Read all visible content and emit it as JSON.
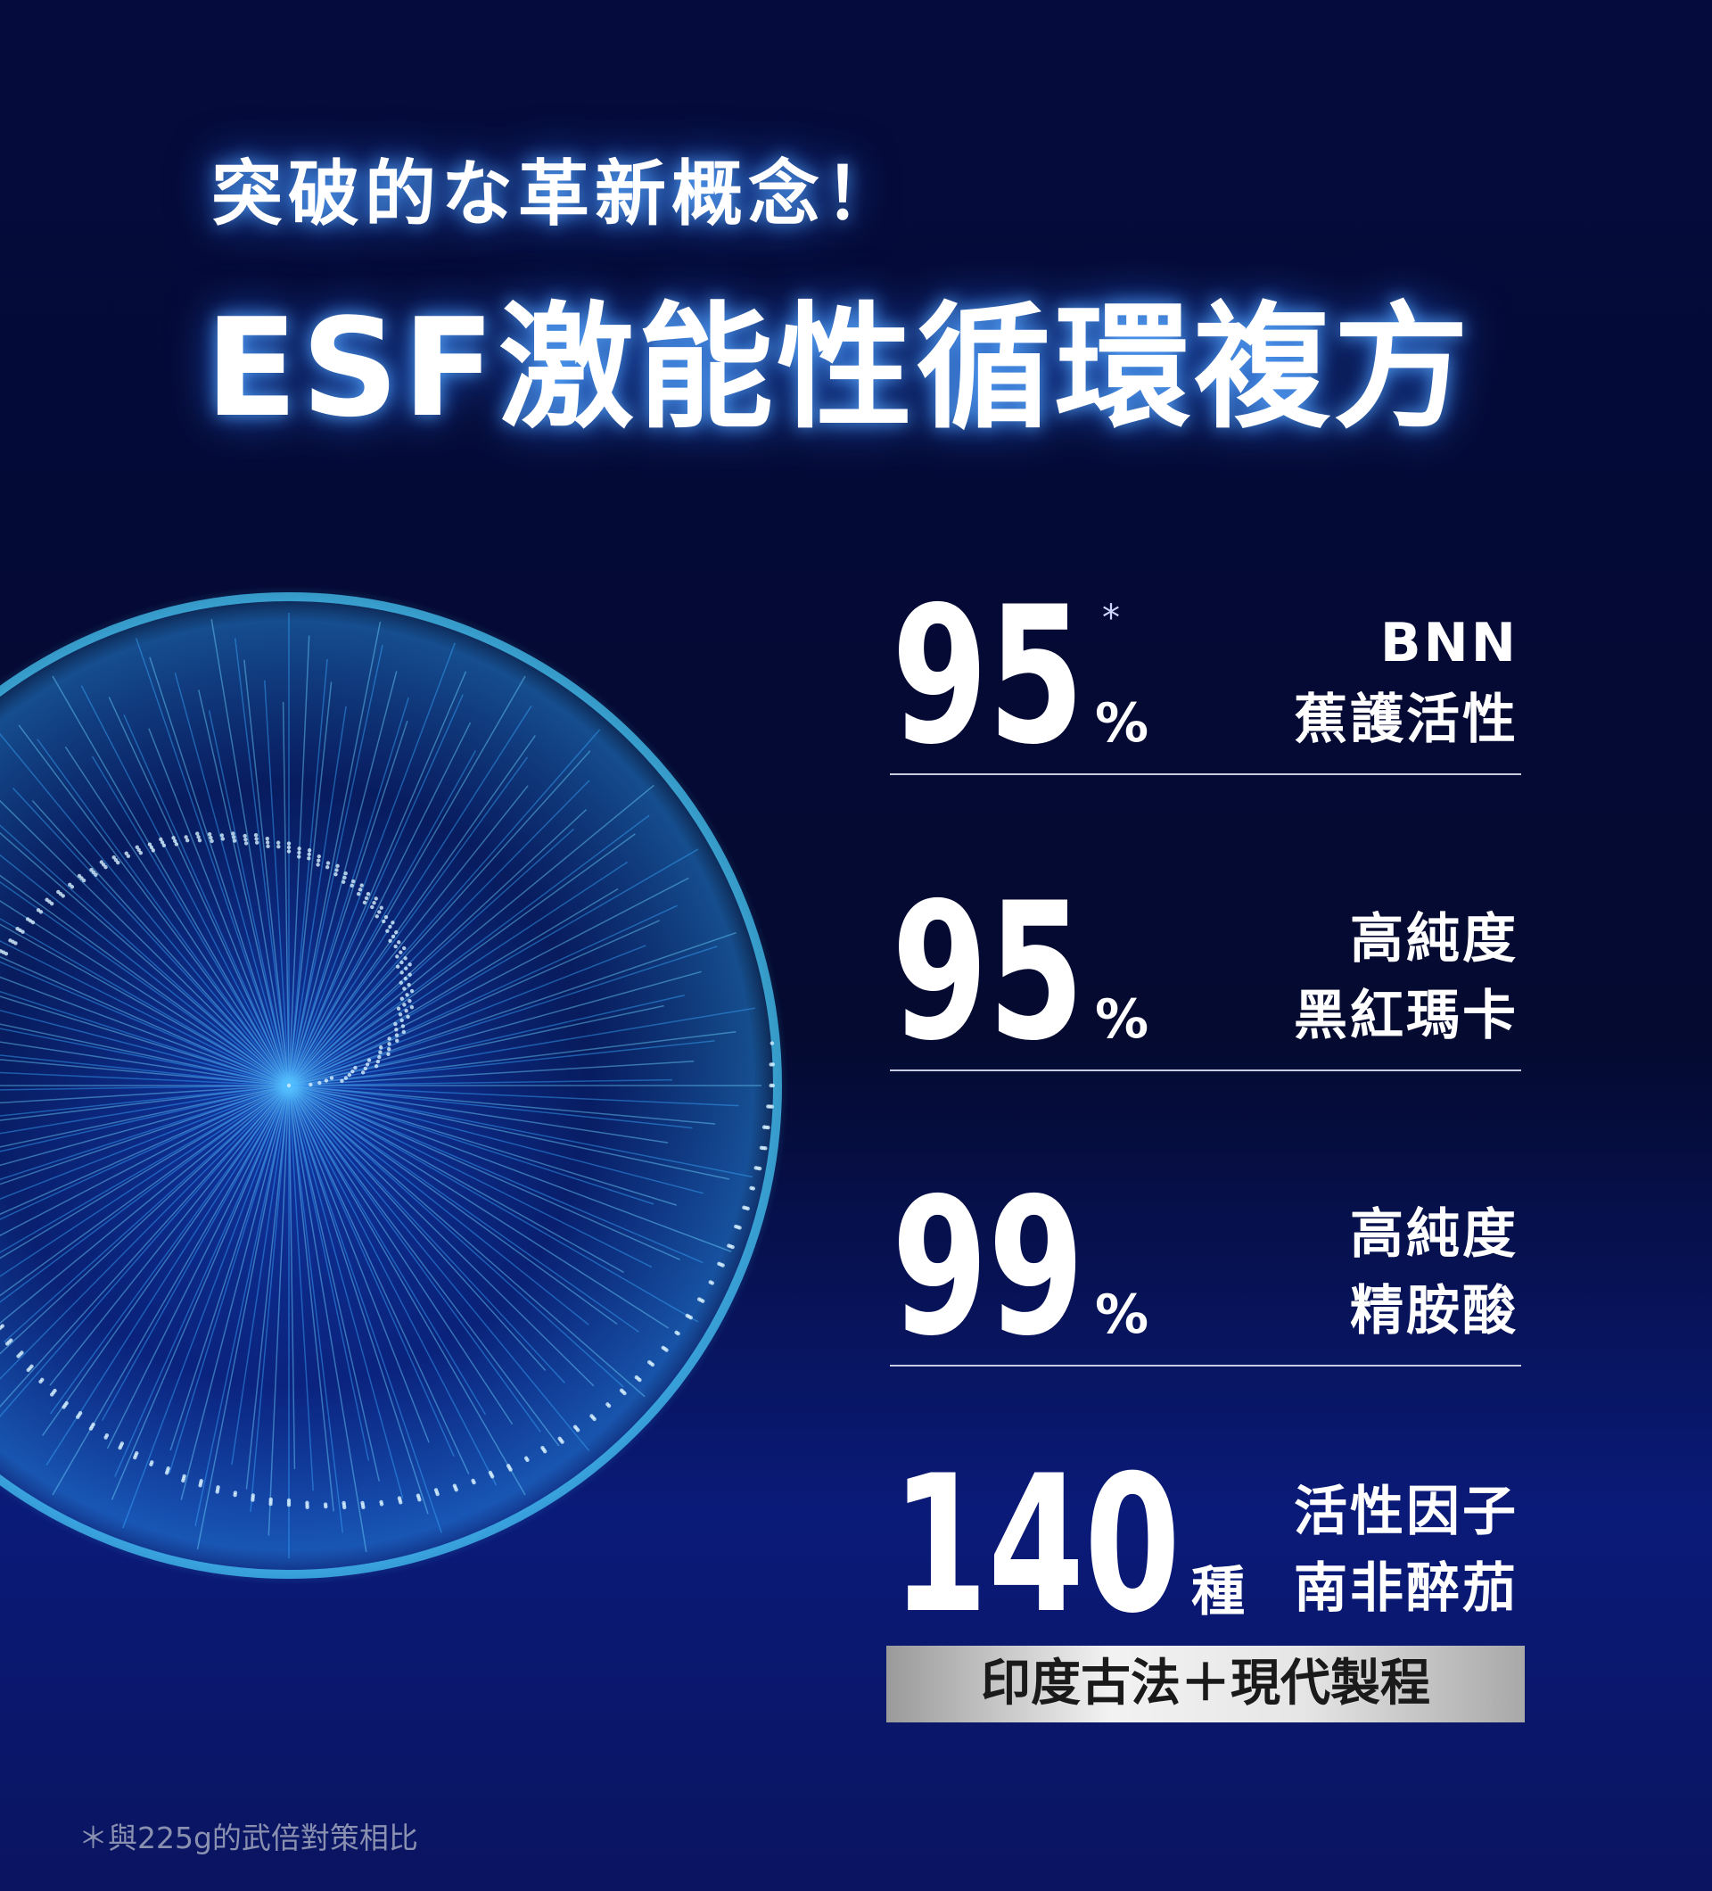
{
  "header": {
    "subtitle": "突破的な革新概念！",
    "title": "ESF激能性循環複方"
  },
  "stats": [
    {
      "number": "95",
      "unit": "%",
      "note": "*",
      "label": [
        "BNN",
        "蕉護活性"
      ]
    },
    {
      "number": "95",
      "unit": "%",
      "label": [
        "高純度",
        "黑紅瑪卡"
      ]
    },
    {
      "number": "99",
      "unit": "%",
      "label": [
        "高純度",
        "精胺酸"
      ]
    },
    {
      "number": "140",
      "unit": "種",
      "label": [
        "活性因子",
        "南非醉茄"
      ]
    }
  ],
  "banner": "印度古法＋現代製程",
  "footnote": "＊與225g的武倍對策相比"
}
